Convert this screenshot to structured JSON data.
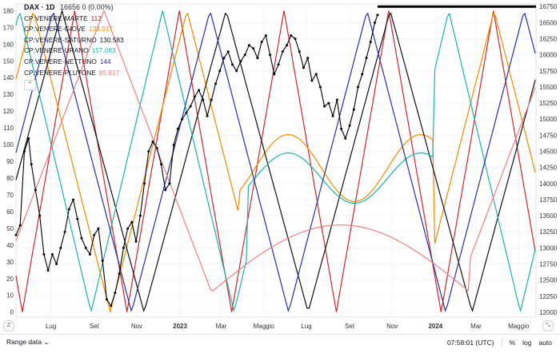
{
  "chart_data": {
    "type": "line",
    "title": "DAX · 1D",
    "subtitle": "16656 0 (0.00%)",
    "x_labels": [
      "Lug",
      "Set",
      "Nov",
      "2023",
      "Mar",
      "Maggio",
      "Lug",
      "Set",
      "Nov",
      "2024",
      "Mar",
      "Maggio"
    ],
    "left_axis": {
      "ticks": [
        0,
        10,
        20,
        30,
        40,
        50,
        60,
        70,
        80,
        90,
        100,
        110,
        120,
        130,
        140,
        150,
        160,
        170,
        180
      ],
      "range": [
        -3,
        184
      ]
    },
    "right_axis": {
      "ticks": [
        12000,
        12250,
        12500,
        12750,
        13000,
        13250,
        13500,
        13750,
        14000,
        14250,
        14500,
        14750,
        15000,
        15250,
        15500,
        15750,
        16000,
        16250,
        16500,
        16750
      ],
      "range": [
        11925,
        16790
      ]
    },
    "series": [
      {
        "name": "CP:VENERE-MARTE",
        "value": "112",
        "color": "#c92a2a"
      },
      {
        "name": "CP:VENERE-GIOVE",
        "value": "133.017",
        "color": "#f08c00"
      },
      {
        "name": "CP:VENERE-SATURNO",
        "value": "130.583",
        "color": "#111111"
      },
      {
        "name": "CP:VENERE-URANO",
        "value": "157.083",
        "color": "#20b2aa"
      },
      {
        "name": "CP:VENERE-NETTUNO",
        "value": "144",
        "color": "#2b2fa8"
      },
      {
        "name": "CP:VENERE-PLUTONE",
        "value": "85.617",
        "color": "#f08080"
      }
    ],
    "price": {
      "name": "DAX",
      "color": "#000000",
      "points": [
        [
          0,
          13200
        ],
        [
          6,
          13350
        ],
        [
          12,
          14500
        ],
        [
          18,
          14700
        ],
        [
          22,
          14300
        ],
        [
          28,
          13900
        ],
        [
          34,
          13500
        ],
        [
          40,
          12900
        ],
        [
          46,
          12650
        ],
        [
          52,
          12900
        ],
        [
          58,
          12750
        ],
        [
          64,
          13000
        ],
        [
          70,
          13250
        ],
        [
          76,
          13600
        ],
        [
          82,
          13750
        ],
        [
          88,
          13450
        ],
        [
          94,
          13150
        ],
        [
          100,
          13000
        ],
        [
          106,
          12900
        ],
        [
          112,
          13200
        ],
        [
          118,
          13300
        ],
        [
          124,
          12800
        ],
        [
          130,
          12200
        ],
        [
          136,
          12100
        ],
        [
          142,
          12300
        ],
        [
          148,
          12600
        ],
        [
          154,
          13000
        ],
        [
          160,
          13300
        ],
        [
          166,
          13400
        ],
        [
          172,
          13100
        ],
        [
          178,
          13500
        ],
        [
          184,
          14000
        ],
        [
          190,
          14500
        ],
        [
          196,
          14650
        ],
        [
          202,
          14550
        ],
        [
          208,
          14300
        ],
        [
          214,
          13900
        ],
        [
          220,
          14000
        ],
        [
          226,
          14600
        ],
        [
          232,
          14850
        ],
        [
          238,
          15000
        ],
        [
          244,
          15100
        ],
        [
          250,
          15200
        ],
        [
          256,
          15350
        ],
        [
          262,
          15450
        ],
        [
          268,
          15300
        ],
        [
          274,
          15050
        ],
        [
          280,
          15300
        ],
        [
          286,
          15550
        ],
        [
          292,
          15750
        ],
        [
          298,
          15950
        ],
        [
          304,
          16050
        ],
        [
          310,
          15850
        ],
        [
          316,
          15750
        ],
        [
          322,
          15900
        ],
        [
          328,
          16000
        ],
        [
          334,
          16150
        ],
        [
          340,
          16100
        ],
        [
          346,
          15950
        ],
        [
          352,
          16200
        ],
        [
          358,
          16300
        ],
        [
          364,
          16000
        ],
        [
          370,
          15700
        ],
        [
          376,
          15850
        ],
        [
          382,
          16050
        ],
        [
          388,
          16150
        ],
        [
          394,
          16300
        ],
        [
          400,
          16250
        ],
        [
          406,
          16050
        ],
        [
          412,
          15800
        ],
        [
          418,
          15950
        ],
        [
          424,
          15600
        ],
        [
          430,
          15700
        ],
        [
          436,
          15500
        ],
        [
          442,
          15200
        ],
        [
          448,
          15250
        ],
        [
          454,
          15050
        ],
        [
          460,
          15300
        ],
        [
          466,
          14850
        ],
        [
          472,
          14700
        ],
        [
          478,
          14900
        ],
        [
          484,
          15150
        ],
        [
          490,
          15500
        ],
        [
          496,
          15700
        ],
        [
          502,
          15950
        ],
        [
          508,
          16200
        ],
        [
          514,
          16500
        ],
        [
          518,
          16620
        ]
      ]
    },
    "price_flat": {
      "start_x": 518,
      "end_x": 745,
      "value": 16750
    },
    "grid": true,
    "legend_position": "top-left",
    "time_readout": "07:58:01 (UTC)",
    "range_label": "Range data"
  },
  "footer": {
    "percent": "%",
    "log": "log",
    "auto": "auto",
    "corner_left": "Z",
    "corner_right": "⤡"
  }
}
